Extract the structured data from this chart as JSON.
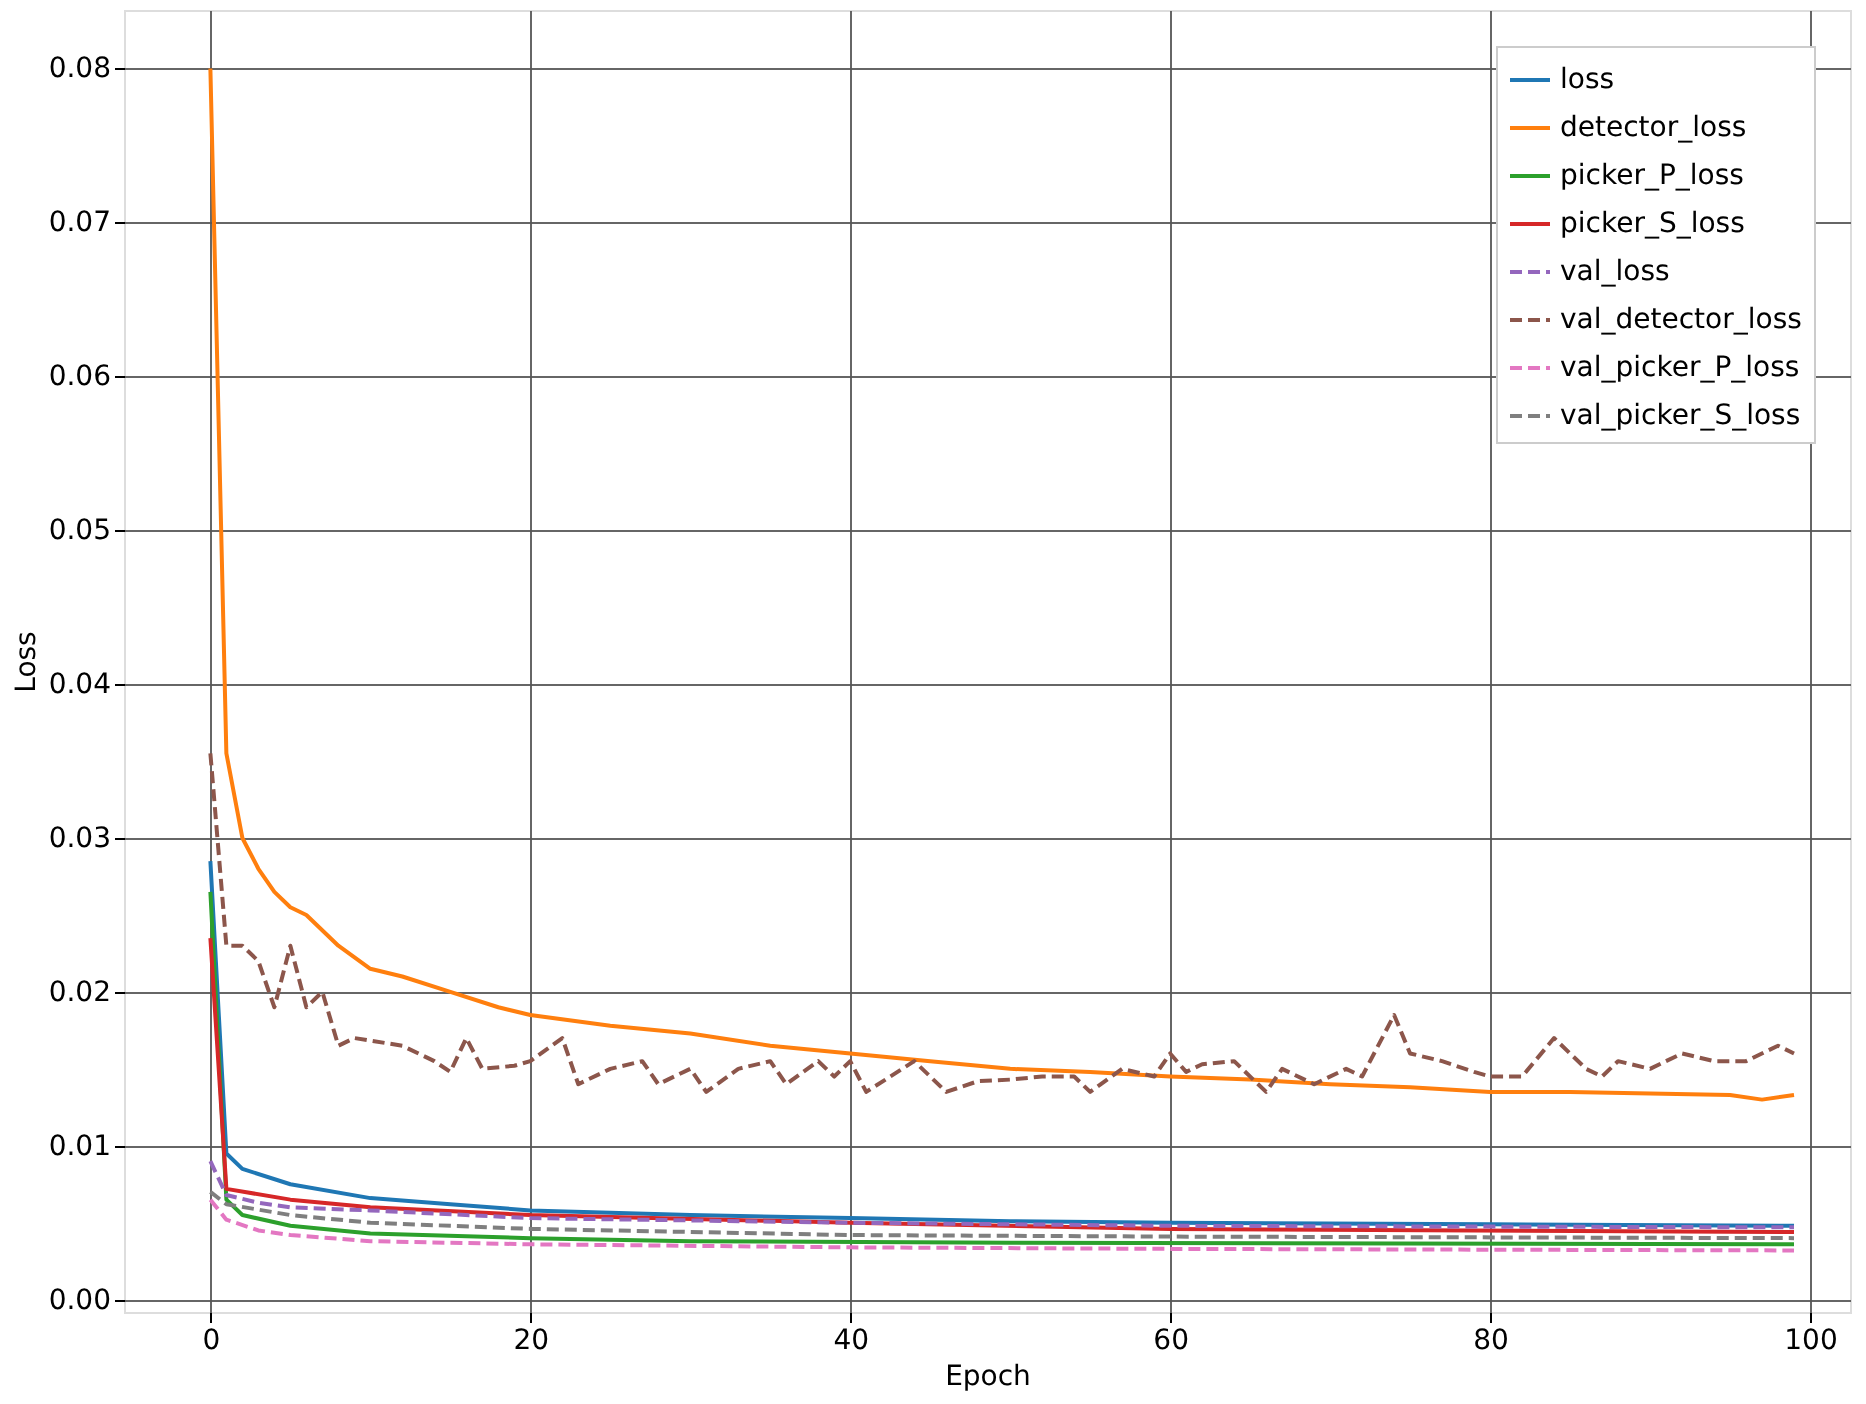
{
  "chart_data": {
    "type": "line",
    "xlabel": "Epoch",
    "ylabel": "Loss",
    "xlim": [
      -5.4,
      102.5
    ],
    "xticks": [
      0,
      20,
      40,
      60,
      80,
      100
    ],
    "ylim": [
      -0.0008,
      0.0838
    ],
    "yticks": [
      {
        "value": 0,
        "label": "0.00"
      },
      {
        "value": 0.01,
        "label": "0.01"
      },
      {
        "value": 0.02,
        "label": "0.02"
      },
      {
        "value": 0.03,
        "label": "0.03"
      },
      {
        "value": 0.04,
        "label": "0.04"
      },
      {
        "value": 0.05,
        "label": "0.05"
      },
      {
        "value": 0.06,
        "label": "0.06"
      },
      {
        "value": 0.07,
        "label": "0.07"
      },
      {
        "value": 0.08,
        "label": "0.08"
      }
    ],
    "grid": true,
    "legend": "top right",
    "marker": "none",
    "series": [
      {
        "name": "loss",
        "color": "#1f77b4",
        "line_style": "solid",
        "x": [
          0,
          1,
          2,
          5,
          10,
          15,
          20,
          30,
          40,
          50,
          60,
          80,
          99
        ],
        "values": [
          0.0285,
          0.0095,
          0.0085,
          0.0075,
          0.0066,
          0.0062,
          0.0058,
          0.0055,
          0.0053,
          0.0051,
          0.005,
          0.0049,
          0.0048
        ]
      },
      {
        "name": "detector_loss",
        "color": "#ff7f0e",
        "line_style": "solid",
        "x": [
          0,
          1,
          2,
          3,
          4,
          5,
          6,
          8,
          10,
          12,
          15,
          18,
          20,
          25,
          30,
          35,
          40,
          45,
          50,
          55,
          60,
          65,
          70,
          75,
          80,
          85,
          90,
          95,
          97,
          99
        ],
        "values": [
          0.08,
          0.0355,
          0.03,
          0.028,
          0.0265,
          0.0255,
          0.025,
          0.023,
          0.0215,
          0.021,
          0.02,
          0.019,
          0.0185,
          0.0178,
          0.0173,
          0.0165,
          0.016,
          0.0155,
          0.015,
          0.0148,
          0.0145,
          0.0143,
          0.014,
          0.0138,
          0.0135,
          0.0135,
          0.0134,
          0.0133,
          0.013,
          0.0133
        ]
      },
      {
        "name": "picker_P_loss",
        "color": "#2ca02c",
        "line_style": "solid",
        "x": [
          0,
          1,
          2,
          5,
          10,
          20,
          30,
          50,
          99
        ],
        "values": [
          0.0265,
          0.0065,
          0.0055,
          0.0048,
          0.0043,
          0.004,
          0.0038,
          0.0037,
          0.0036
        ]
      },
      {
        "name": "picker_S_loss",
        "color": "#d62728",
        "line_style": "solid",
        "x": [
          0,
          1,
          5,
          10,
          20,
          40,
          60,
          99
        ],
        "values": [
          0.0235,
          0.0072,
          0.0065,
          0.006,
          0.0055,
          0.005,
          0.0046,
          0.0044
        ]
      },
      {
        "name": "val_loss",
        "color": "#9467bd",
        "line_style": "dashed",
        "x": [
          0,
          1,
          3,
          5,
          10,
          20,
          40,
          60,
          99
        ],
        "values": [
          0.009,
          0.0068,
          0.0063,
          0.006,
          0.0058,
          0.0053,
          0.005,
          0.0048,
          0.0047
        ]
      },
      {
        "name": "val_detector_loss",
        "color": "#8c564b",
        "line_style": "dashed",
        "x": [
          0,
          1,
          2,
          3,
          4,
          5,
          6,
          7,
          8,
          9,
          12,
          14,
          15,
          16,
          17,
          19,
          20,
          22,
          23,
          25,
          27,
          28,
          30,
          31,
          33,
          35,
          36,
          38,
          39,
          40,
          41,
          44,
          45,
          46,
          48,
          50,
          52,
          54,
          55,
          57,
          59,
          60,
          61,
          62,
          64,
          66,
          67,
          69,
          71,
          72,
          74,
          75,
          77,
          79,
          80,
          82,
          84,
          86,
          87,
          88,
          90,
          92,
          94,
          96,
          98,
          99
        ],
        "values": [
          0.0355,
          0.023,
          0.023,
          0.022,
          0.019,
          0.023,
          0.019,
          0.02,
          0.0165,
          0.017,
          0.0165,
          0.0155,
          0.0148,
          0.017,
          0.015,
          0.0152,
          0.0155,
          0.017,
          0.014,
          0.015,
          0.0155,
          0.014,
          0.015,
          0.0135,
          0.015,
          0.0155,
          0.014,
          0.0155,
          0.0145,
          0.0155,
          0.0135,
          0.0155,
          0.0145,
          0.0135,
          0.0142,
          0.0143,
          0.0145,
          0.0145,
          0.0135,
          0.015,
          0.0145,
          0.016,
          0.0148,
          0.0153,
          0.0155,
          0.0135,
          0.015,
          0.014,
          0.015,
          0.0145,
          0.0185,
          0.016,
          0.0155,
          0.0148,
          0.0145,
          0.0145,
          0.017,
          0.015,
          0.0145,
          0.0155,
          0.015,
          0.016,
          0.0155,
          0.0155,
          0.0165,
          0.016
        ]
      },
      {
        "name": "val_picker_P_loss",
        "color": "#e377c2",
        "line_style": "dashed",
        "x": [
          0,
          1,
          3,
          5,
          10,
          20,
          40,
          60,
          99
        ],
        "values": [
          0.0065,
          0.0052,
          0.0045,
          0.0042,
          0.0038,
          0.0036,
          0.0034,
          0.0033,
          0.0032
        ]
      },
      {
        "name": "val_picker_S_loss",
        "color": "#7f7f7f",
        "line_style": "dashed",
        "x": [
          0,
          1,
          5,
          10,
          20,
          40,
          60,
          99
        ],
        "values": [
          0.007,
          0.0062,
          0.0055,
          0.005,
          0.0046,
          0.0042,
          0.0041,
          0.004
        ]
      }
    ]
  }
}
